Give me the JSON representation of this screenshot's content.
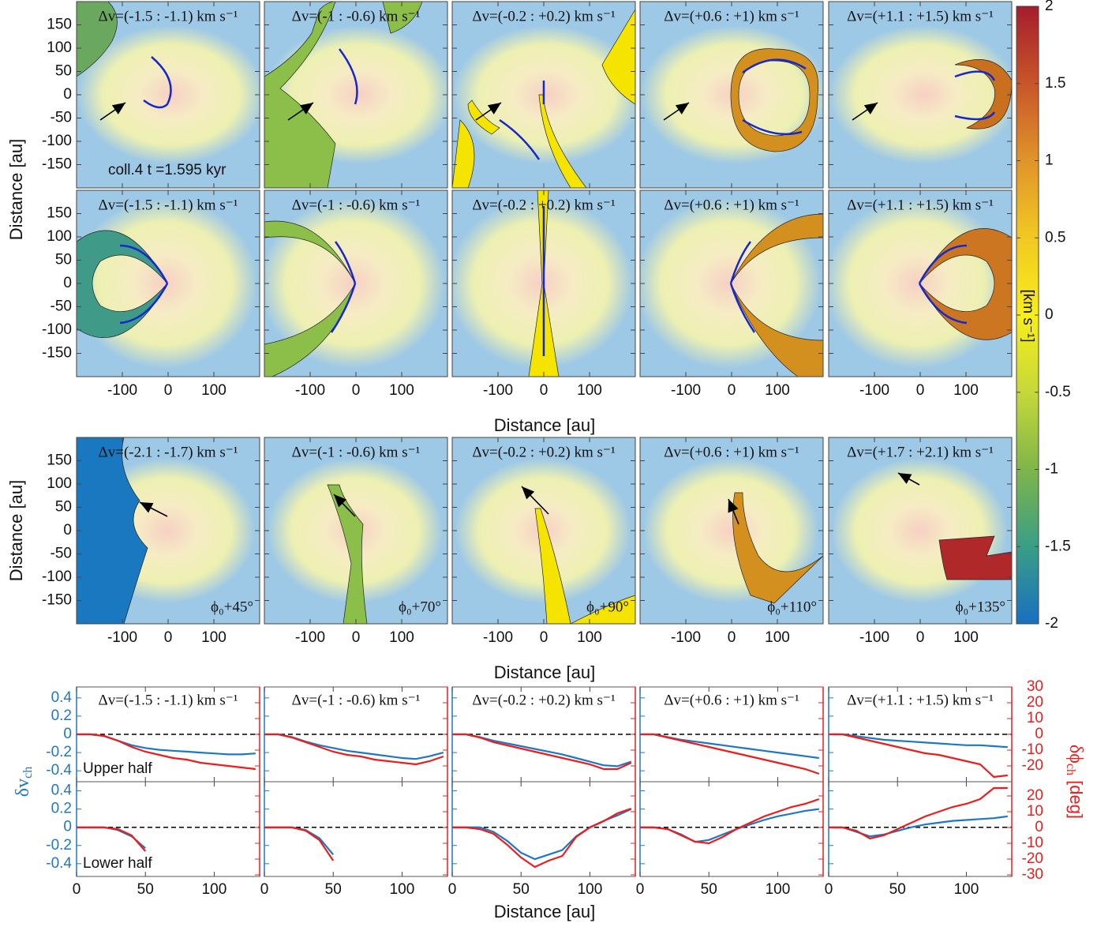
{
  "chart_data": [
    {
      "type": "map",
      "xlim": [
        -200,
        200
      ],
      "ylim": [
        -200,
        200
      ],
      "xticks": [
        -100,
        0,
        100
      ],
      "yticks": [
        150,
        100,
        50,
        0,
        -50,
        -100,
        -150
      ],
      "x_label": "Distance [au]",
      "y_label": "Distance [au]",
      "annotation": "coll.4   t =1.595 kyr",
      "rows": [
        {
          "panels": [
            {
              "title": "Δv=(-1.5 : -1.1) km s⁻¹"
            },
            {
              "title": "Δv=(-1 : -0.6) km s⁻¹"
            },
            {
              "title": "Δv=(-0.2 : +0.2) km s⁻¹"
            },
            {
              "title": "Δv=(+0.6 : +1) km s⁻¹"
            },
            {
              "title": "Δv=(+1.1 : +1.5) km s⁻¹"
            }
          ]
        },
        {
          "panels": [
            {
              "title": "Δv=(-1.5 : -1.1) km s⁻¹"
            },
            {
              "title": "Δv=(-1 : -0.6) km s⁻¹"
            },
            {
              "title": "Δv=(-0.2 : +0.2) km s⁻¹"
            },
            {
              "title": "Δv=(+0.6 : +1) km s⁻¹"
            },
            {
              "title": "Δv=(+1.1 : +1.5) km s⁻¹"
            }
          ]
        },
        {
          "panels": [
            {
              "title": "Δv=(-2.1 : -1.7) km s⁻¹",
              "note": "ϕ₀+45°"
            },
            {
              "title": "Δv=(-1 : -0.6) km s⁻¹",
              "note": "ϕ₀+70°"
            },
            {
              "title": "Δv=(-0.2 : +0.2) km s⁻¹",
              "note": "ϕ₀+90°"
            },
            {
              "title": "Δv=(+0.6 : +1) km s⁻¹",
              "note": "ϕ₀+110°"
            },
            {
              "title": "Δv=(+1.7 : +2.1) km s⁻¹",
              "note": "ϕ₀+135°"
            }
          ]
        }
      ],
      "colorbar": {
        "lim": [
          -2,
          2
        ],
        "ticks": [
          2,
          1.5,
          1,
          0.5,
          0,
          -0.5,
          -1,
          -1.5,
          -2
        ],
        "label": "[km s⁻¹]",
        "colors": [
          "#a51d2d",
          "#c8552a",
          "#e0942a",
          "#f2c822",
          "#f8ee1a",
          "#c6d83a",
          "#7fb54a",
          "#3a9e86",
          "#1a6fc0"
        ]
      }
    },
    {
      "type": "line",
      "xlim": [
        0,
        133
      ],
      "xticks": [
        0,
        50,
        100
      ],
      "x_label": "Distance [au]",
      "y_label": {
        "text": "δv",
        "sub": "ch"
      },
      "y2_label": {
        "text": "δϕ",
        "sub": "ch",
        "tail": " [deg]"
      },
      "x": [
        0,
        10,
        20,
        30,
        40,
        50,
        60,
        70,
        80,
        90,
        100,
        110,
        120,
        130
      ],
      "upper": {
        "label": "Upper half",
        "ylim": [
          -0.52,
          0.52
        ],
        "yticks": [
          0.4,
          0.2,
          0,
          -0.2,
          -0.4
        ],
        "y2lim": [
          -30,
          30
        ],
        "y2ticks": [
          30,
          20,
          10,
          0,
          -10,
          -20
        ]
      },
      "lower": {
        "label": "Lower half",
        "ylim": [
          -0.54,
          0.5
        ],
        "yticks": [
          0.4,
          0.2,
          0,
          -0.2,
          -0.4
        ],
        "y2lim": [
          -31,
          29
        ],
        "y2ticks": [
          20,
          10,
          0,
          -10,
          -20,
          -30
        ]
      },
      "panels": [
        {
          "title": "Δv=(-1.5 : -1.1) km s⁻¹",
          "upper": [
            {
              "color": "#1f77c4",
              "values": [
                0,
                0,
                -0.02,
                -0.07,
                -0.12,
                -0.15,
                -0.17,
                -0.18,
                -0.19,
                -0.2,
                -0.21,
                -0.22,
                -0.22,
                -0.21
              ]
            },
            {
              "color": "#ee1c1c",
              "axis": "y2",
              "values": [
                0,
                0,
                -1,
                -4,
                -8,
                -11,
                -13,
                -15,
                -16,
                -18,
                -19,
                -20,
                -21,
                -22
              ]
            }
          ],
          "lower": [
            {
              "color": "#1f77c4",
              "values": [
                0,
                0,
                0,
                -0.03,
                -0.1,
                -0.23,
                null,
                null,
                null,
                null,
                null,
                null,
                null,
                null
              ]
            },
            {
              "color": "#ee1c1c",
              "axis": "y2",
              "values": [
                0,
                0,
                0,
                -1,
                -5,
                -15,
                null,
                null,
                null,
                null,
                null,
                null,
                null,
                null
              ]
            }
          ]
        },
        {
          "title": "Δv=(-1 : -0.6) km s⁻¹",
          "upper": [
            {
              "color": "#1f77c4",
              "values": [
                0,
                0,
                -0.03,
                -0.08,
                -0.12,
                -0.15,
                -0.18,
                -0.2,
                -0.22,
                -0.24,
                -0.26,
                -0.27,
                -0.24,
                -0.2
              ]
            },
            {
              "color": "#ee1c1c",
              "axis": "y2",
              "values": [
                0,
                0,
                -2,
                -5,
                -8,
                -11,
                -13,
                -14,
                -16,
                -17,
                -18,
                -19,
                -17,
                -14
              ]
            }
          ],
          "lower": [
            {
              "color": "#1f77c4",
              "values": [
                0,
                0,
                0,
                -0.03,
                -0.12,
                -0.3,
                null,
                null,
                null,
                null,
                null,
                null,
                null,
                null
              ]
            },
            {
              "color": "#ee1c1c",
              "axis": "y2",
              "values": [
                0,
                0,
                0,
                -2,
                -8,
                -21,
                null,
                null,
                null,
                null,
                null,
                null,
                null,
                null
              ]
            }
          ]
        },
        {
          "title": "Δv=(-0.2 : +0.2) km s⁻¹",
          "upper": [
            {
              "color": "#1f77c4",
              "values": [
                0,
                0,
                -0.03,
                -0.07,
                -0.1,
                -0.13,
                -0.16,
                -0.19,
                -0.22,
                -0.26,
                -0.3,
                -0.34,
                -0.35,
                -0.3
              ]
            },
            {
              "color": "#ee1c1c",
              "axis": "y2",
              "values": [
                0,
                0,
                -2,
                -5,
                -7,
                -9,
                -11,
                -13,
                -15,
                -17,
                -19,
                -22,
                -22,
                -18
              ]
            }
          ],
          "lower": [
            {
              "color": "#1f77c4",
              "values": [
                0,
                0,
                0,
                -0.05,
                -0.15,
                -0.28,
                -0.35,
                -0.3,
                -0.25,
                -0.1,
                0,
                0.07,
                0.13,
                0.2
              ]
            },
            {
              "color": "#ee1c1c",
              "axis": "y2",
              "values": [
                0,
                0,
                -1,
                -4,
                -11,
                -19,
                -25,
                -21,
                -18,
                -6,
                0,
                4,
                9,
                12
              ]
            }
          ]
        },
        {
          "title": "Δv=(+0.6 : +1) km s⁻¹",
          "upper": [
            {
              "color": "#1f77c4",
              "values": [
                0,
                0,
                -0.03,
                -0.06,
                -0.08,
                -0.1,
                -0.12,
                -0.14,
                -0.16,
                -0.18,
                -0.2,
                -0.22,
                -0.24,
                -0.26
              ]
            },
            {
              "color": "#ee1c1c",
              "axis": "y2",
              "values": [
                0,
                0,
                -2,
                -4,
                -6,
                -8,
                -10,
                -12,
                -14,
                -16,
                -18,
                -20,
                -22,
                -25
              ]
            }
          ],
          "lower": [
            {
              "color": "#1f77c4",
              "values": [
                0,
                0,
                -0.02,
                -0.08,
                -0.16,
                -0.14,
                -0.08,
                -0.02,
                0.03,
                0.08,
                0.12,
                0.15,
                0.18,
                0.2
              ]
            },
            {
              "color": "#ee1c1c",
              "axis": "y2",
              "values": [
                0,
                0,
                -1,
                -5,
                -9,
                -10,
                -6,
                -1,
                3,
                7,
                10,
                13,
                15,
                18
              ]
            }
          ]
        },
        {
          "title": "Δv=(+1.1 : +1.5) km s⁻¹",
          "upper": [
            {
              "color": "#1f77c4",
              "values": [
                0,
                0,
                -0.02,
                -0.04,
                -0.06,
                -0.07,
                -0.08,
                -0.09,
                -0.1,
                -0.11,
                -0.12,
                -0.12,
                -0.13,
                -0.14
              ]
            },
            {
              "color": "#ee1c1c",
              "axis": "y2",
              "values": [
                0,
                0,
                -2,
                -4,
                -6,
                -8,
                -10,
                -12,
                -13,
                -15,
                -17,
                -19,
                -27,
                -26
              ]
            }
          ],
          "lower": [
            {
              "color": "#1f77c4",
              "values": [
                0,
                0,
                -0.05,
                -0.1,
                -0.08,
                -0.04,
                0,
                0.03,
                0.05,
                0.07,
                0.08,
                0.09,
                0.1,
                0.12
              ]
            },
            {
              "color": "#ee1c1c",
              "axis": "y2",
              "values": [
                0,
                0,
                -2,
                -7,
                -5,
                -1,
                3,
                7,
                10,
                13,
                15,
                18,
                25,
                25
              ]
            }
          ]
        }
      ]
    }
  ]
}
